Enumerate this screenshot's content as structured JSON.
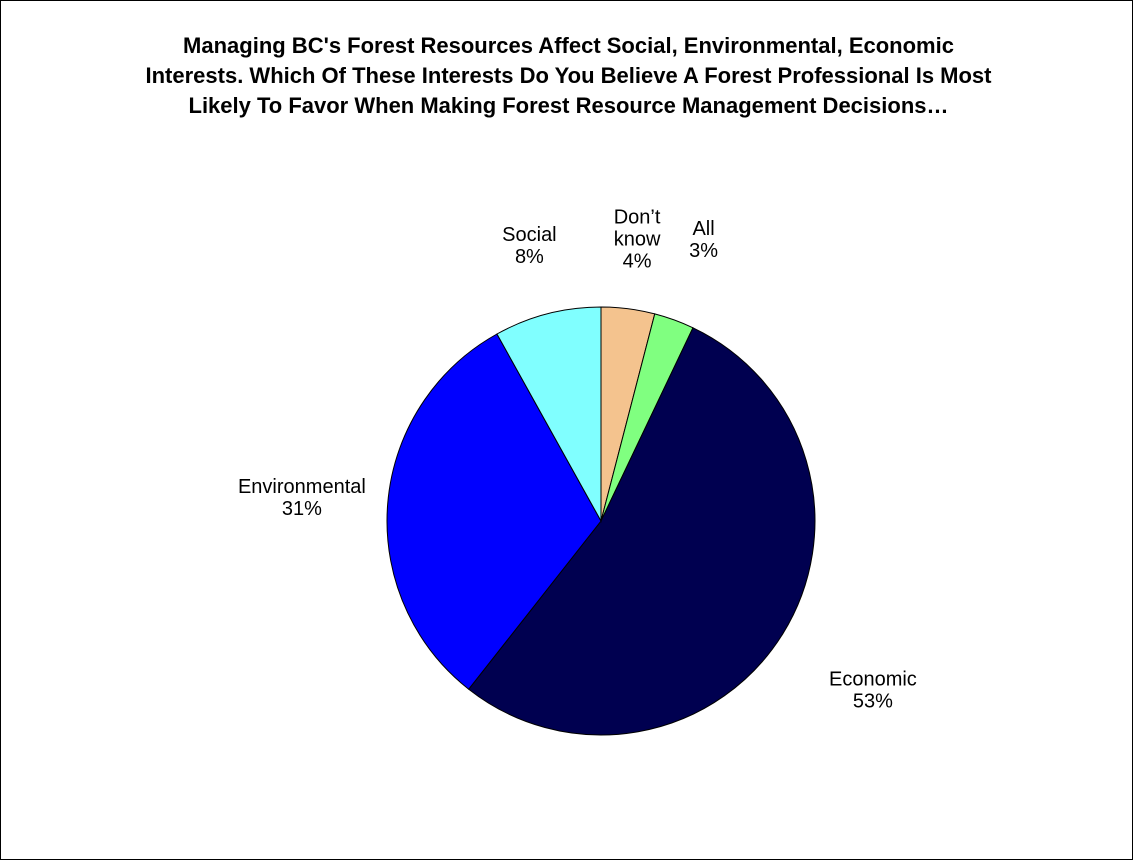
{
  "chart_data": {
    "type": "pie",
    "title_lines": [
      "Managing BC's Forest Resources Affect Social, Environmental, Economic",
      "Interests. Which Of These Interests Do You Believe A Forest Professional Is Most",
      "Likely To Favor When Making Forest Resource Management Decisions…"
    ],
    "slices": [
      {
        "label_lines": [
          "Don’t",
          "know"
        ],
        "value": 4,
        "value_label": "4%",
        "color": "#F4C38E"
      },
      {
        "label_lines": [
          "All"
        ],
        "value": 3,
        "value_label": "3%",
        "color": "#80FF80"
      },
      {
        "label_lines": [
          "Economic"
        ],
        "value": 53,
        "value_label": "53%",
        "color": "#000050"
      },
      {
        "label_lines": [
          "Environmental"
        ],
        "value": 31,
        "value_label": "31%",
        "color": "#0000FF"
      },
      {
        "label_lines": [
          "Social"
        ],
        "value": 8,
        "value_label": "8%",
        "color": "#80FFFF"
      }
    ],
    "start": "12 o'clock",
    "direction": "clockwise",
    "legend": "none",
    "border_color": "#000000"
  }
}
